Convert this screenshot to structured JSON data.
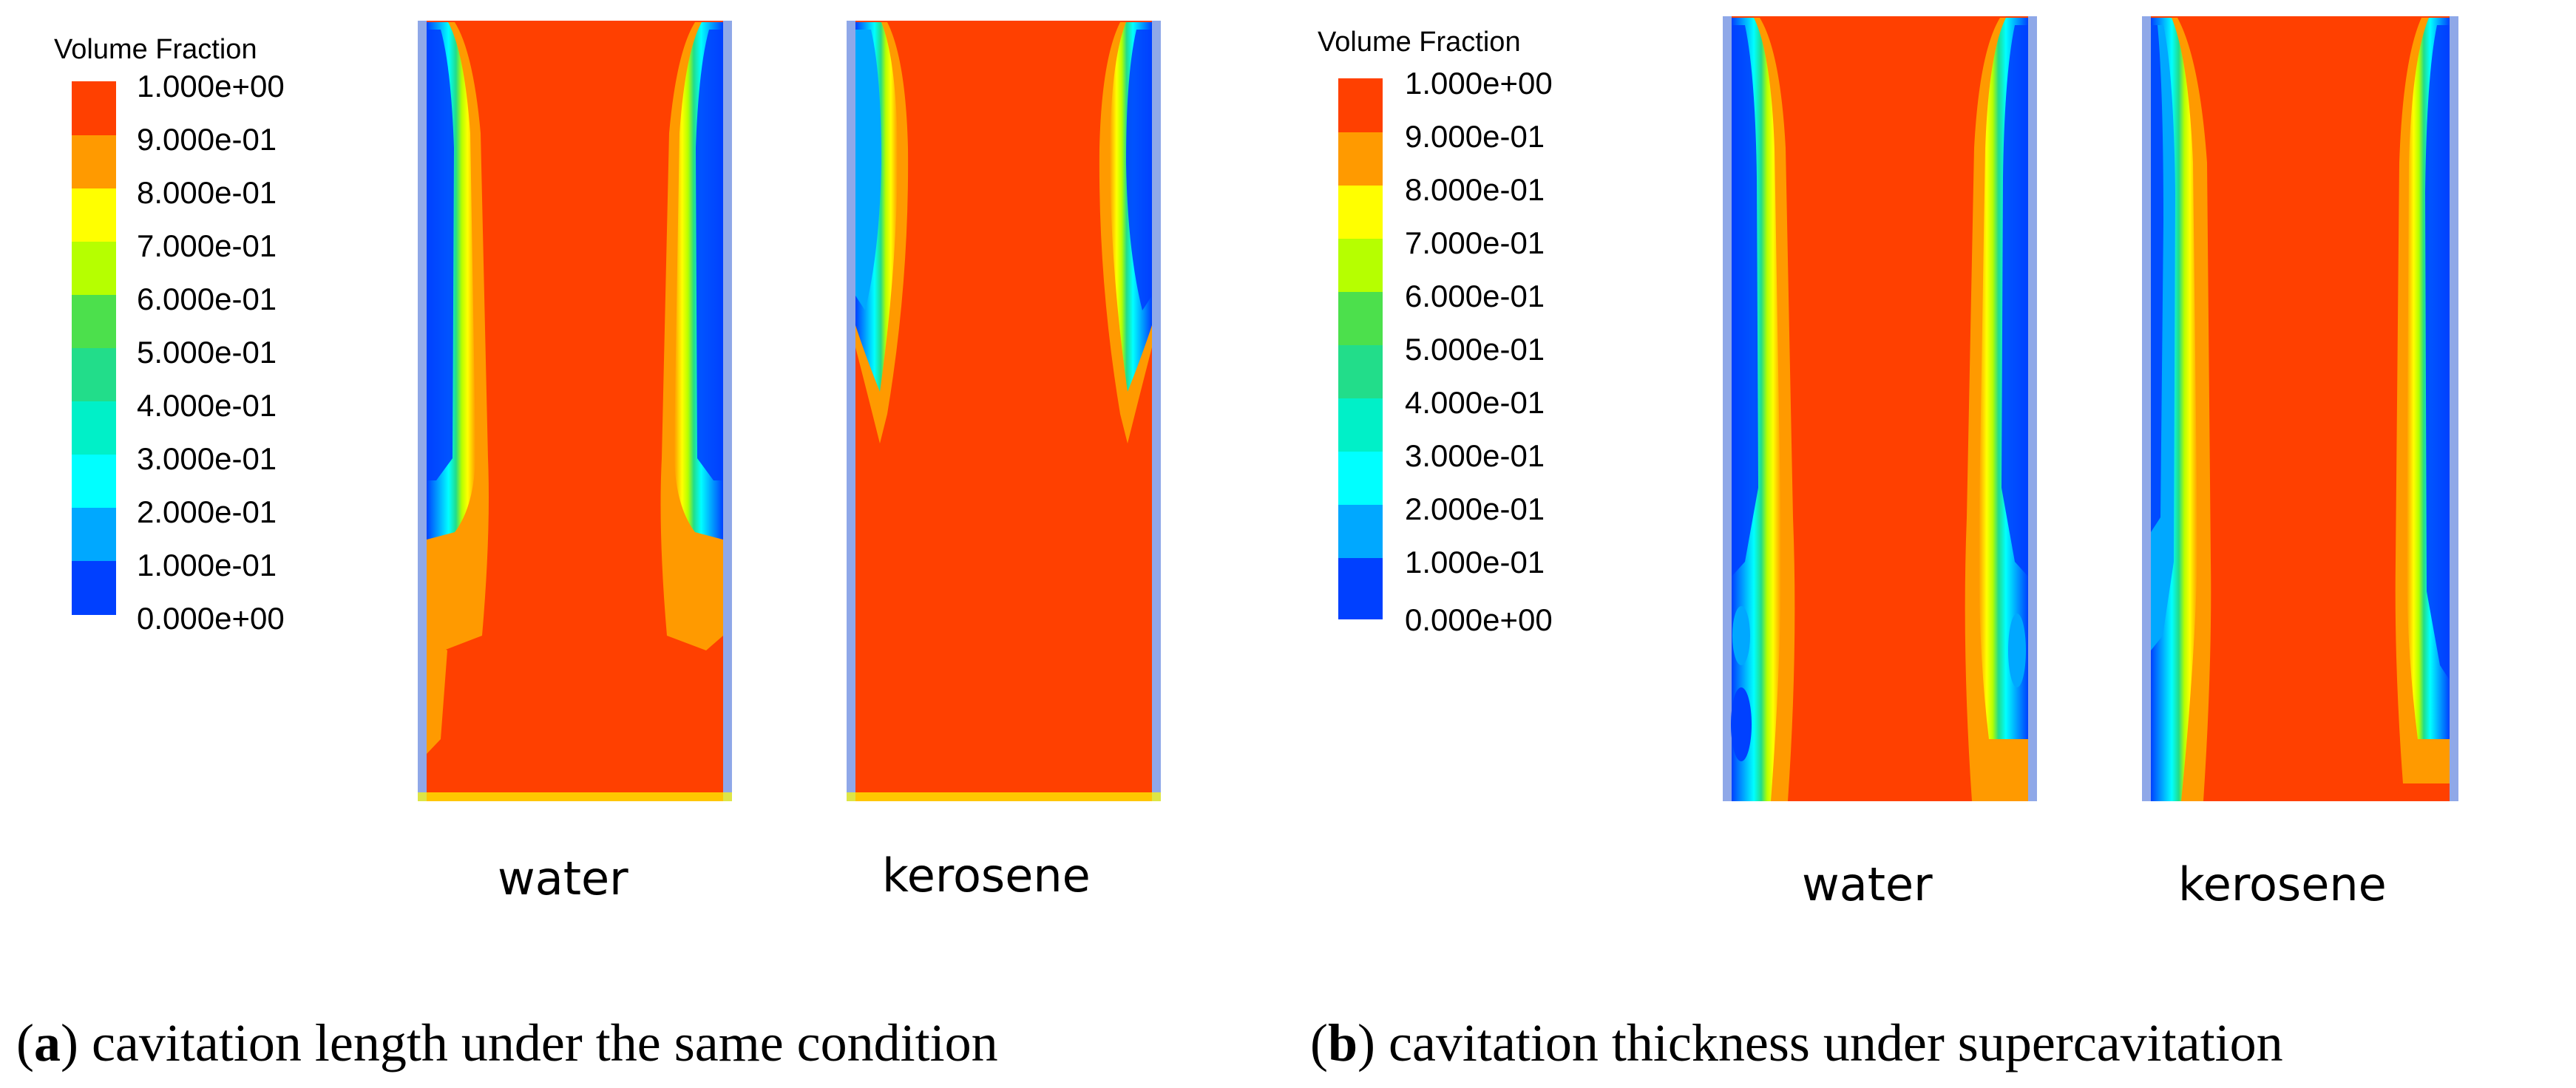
{
  "legend": {
    "title": "Volume Fraction",
    "ticks": [
      "1.000e+00",
      "9.000e-01",
      "8.000e-01",
      "7.000e-01",
      "6.000e-01",
      "5.000e-01",
      "4.000e-01",
      "3.000e-01",
      "2.000e-01",
      "1.000e-01",
      "0.000e+00"
    ],
    "colors": [
      "#ff4000",
      "#ff9a00",
      "#ffff00",
      "#b6ff00",
      "#4ce04c",
      "#22dd8a",
      "#00f0c8",
      "#00ffff",
      "#00a8ff",
      "#0040ff"
    ]
  },
  "panel_a": {
    "labels": [
      "water",
      "kerosene"
    ],
    "caption_letter": "a",
    "caption_text": "cavitation length under the same condition"
  },
  "panel_b": {
    "labels": [
      "water",
      "kerosene"
    ],
    "caption_letter": "b",
    "caption_text": "cavitation thickness under supercavitation"
  },
  "paren_open": "(",
  "paren_close": ")"
}
